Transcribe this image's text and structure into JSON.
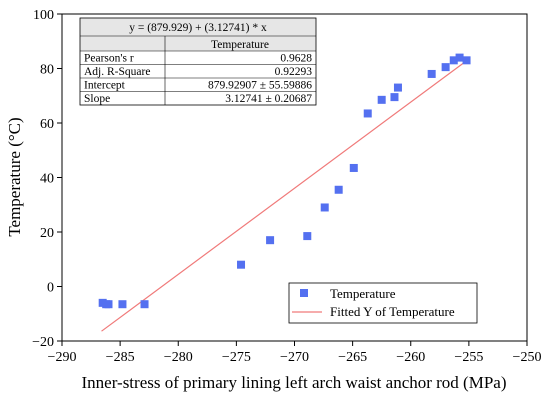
{
  "chart_data": {
    "type": "scatter",
    "xlabel": "Inner-stress of primary lining left arch waist anchor rod (MPa)",
    "ylabel": "Temperature (°C)",
    "xlim": [
      -290,
      -250
    ],
    "ylim": [
      -20,
      100
    ],
    "x_ticks": [
      "−290",
      "−285",
      "−280",
      "−275",
      "−270",
      "−265",
      "−260",
      "−255",
      "−250"
    ],
    "y_ticks": [
      "−20",
      "0",
      "20",
      "40",
      "60",
      "80",
      "100"
    ],
    "grid": false,
    "legend_position": "bottom-right",
    "colors": {
      "points": "#5470f0",
      "fit_line": "#f07a7a",
      "axis": "#000000"
    },
    "series": [
      {
        "name": "Temperature",
        "type": "scatter",
        "points": [
          {
            "x": -286.5,
            "y": -6.0
          },
          {
            "x": -286.2,
            "y": -6.5
          },
          {
            "x": -286.0,
            "y": -6.5
          },
          {
            "x": -284.8,
            "y": -6.5
          },
          {
            "x": -282.9,
            "y": -6.5
          },
          {
            "x": -274.6,
            "y": 8.0
          },
          {
            "x": -272.1,
            "y": 17.0
          },
          {
            "x": -268.9,
            "y": 18.5
          },
          {
            "x": -267.4,
            "y": 29.0
          },
          {
            "x": -266.2,
            "y": 35.5
          },
          {
            "x": -264.9,
            "y": 43.5
          },
          {
            "x": -263.7,
            "y": 63.5
          },
          {
            "x": -262.5,
            "y": 68.5
          },
          {
            "x": -261.4,
            "y": 69.5
          },
          {
            "x": -261.1,
            "y": 73.0
          },
          {
            "x": -258.2,
            "y": 78.0
          },
          {
            "x": -257.0,
            "y": 80.5
          },
          {
            "x": -256.3,
            "y": 83.0
          },
          {
            "x": -255.8,
            "y": 84.0
          },
          {
            "x": -255.2,
            "y": 83.0
          }
        ]
      },
      {
        "name": "Fitted Y of Temperature",
        "type": "line",
        "points": [
          {
            "x": -286.6,
            "y": -16.4
          },
          {
            "x": -255.4,
            "y": 82.2
          }
        ]
      }
    ],
    "stats_table": {
      "equation": "y = (879.929) + (3.12741) * x",
      "column_header": "Temperature",
      "rows": [
        {
          "label": "Pearson's r",
          "value": "0.9628"
        },
        {
          "label": "Adj. R-Square",
          "value": "0.92293"
        },
        {
          "label": "Intercept",
          "value": "879.92907 ± 55.59886"
        },
        {
          "label": "Slope",
          "value": "3.12741 ± 0.20687"
        }
      ]
    }
  }
}
